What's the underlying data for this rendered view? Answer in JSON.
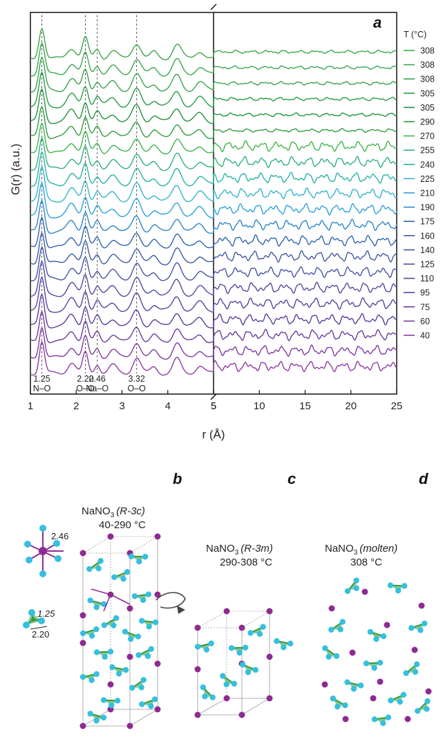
{
  "panels": {
    "a": "a",
    "b": "b",
    "c": "c",
    "d": "d"
  },
  "chart_data": {
    "type": "line",
    "xlabel": "r (Å)",
    "ylabel": "G(r) (a.u.)",
    "x_ticks_left": [
      "1",
      "2",
      "3",
      "4",
      "5"
    ],
    "x_ticks_right": [
      "5",
      "10",
      "15",
      "20",
      "25"
    ],
    "xlim_left": [
      1,
      5
    ],
    "xlim_right": [
      5,
      25
    ],
    "axis_break": true,
    "legend_title": "T (°C)",
    "legend_placement": "right",
    "series": [
      {
        "name": "308",
        "color": "#3aa64a"
      },
      {
        "name": "308",
        "color": "#3aa64a"
      },
      {
        "name": "308",
        "color": "#38a24b"
      },
      {
        "name": "305",
        "color": "#269a45"
      },
      {
        "name": "305",
        "color": "#22913f"
      },
      {
        "name": "290",
        "color": "#2e9c3e"
      },
      {
        "name": "270",
        "color": "#3db44b"
      },
      {
        "name": "255",
        "color": "#2fb07a"
      },
      {
        "name": "240",
        "color": "#25b3a6"
      },
      {
        "name": "225",
        "color": "#35b4cc"
      },
      {
        "name": "210",
        "color": "#2aa0d8"
      },
      {
        "name": "190",
        "color": "#2b84c8"
      },
      {
        "name": "175",
        "color": "#2d63ad"
      },
      {
        "name": "160",
        "color": "#3b5aa0"
      },
      {
        "name": "140",
        "color": "#4552a4"
      },
      {
        "name": "125",
        "color": "#4c4aa0"
      },
      {
        "name": "110",
        "color": "#53439e"
      },
      {
        "name": "95",
        "color": "#5a3b9a"
      },
      {
        "name": "75",
        "color": "#6b3a9c"
      },
      {
        "name": "60",
        "color": "#7d3a9e"
      },
      {
        "name": "40",
        "color": "#8c3b9f"
      }
    ],
    "peaks": [
      {
        "r": 1.25,
        "value": "1.25",
        "label": "N–O"
      },
      {
        "r": 2.2,
        "value": "2.20",
        "label": "O–O"
      },
      {
        "r": 2.46,
        "value": "2.46",
        "label": "Na–O"
      },
      {
        "r": 3.32,
        "value": "3.32",
        "label": "O–O"
      }
    ],
    "peak_curve": [
      {
        "r": 1.25,
        "amp": 1.0,
        "w": 0.08
      },
      {
        "r": 1.9,
        "amp": 0.35,
        "w": 0.12
      },
      {
        "r": 2.2,
        "amp": 0.65,
        "w": 0.08
      },
      {
        "r": 2.46,
        "amp": 0.3,
        "w": 0.08
      },
      {
        "r": 2.8,
        "amp": 0.25,
        "w": 0.12
      },
      {
        "r": 3.32,
        "amp": 0.5,
        "w": 0.12
      },
      {
        "r": 3.7,
        "amp": 0.2,
        "w": 0.1
      },
      {
        "r": 4.2,
        "amp": 0.45,
        "w": 0.12
      },
      {
        "r": 4.7,
        "amp": 0.25,
        "w": 0.12
      }
    ]
  },
  "structures": {
    "b": {
      "formula": "NaNO",
      "sub": "3",
      "phase": "(R-3c)",
      "temp": "40-290 °C"
    },
    "c": {
      "formula": "NaNO",
      "sub": "3",
      "phase": "(R-3m)",
      "temp": "290-308 °C"
    },
    "d": {
      "formula": "NaNO",
      "sub": "3",
      "phase": "(molten)",
      "temp": "308 °C"
    },
    "na_o_distance": "2.46",
    "n_o_distance": "1.25",
    "o_o_distance": "2.20"
  },
  "colors": {
    "sodium": "#8e2b92",
    "oxygen": "#35bfe0",
    "nitrogen": "#2f9a3a",
    "frame": "#111111"
  }
}
